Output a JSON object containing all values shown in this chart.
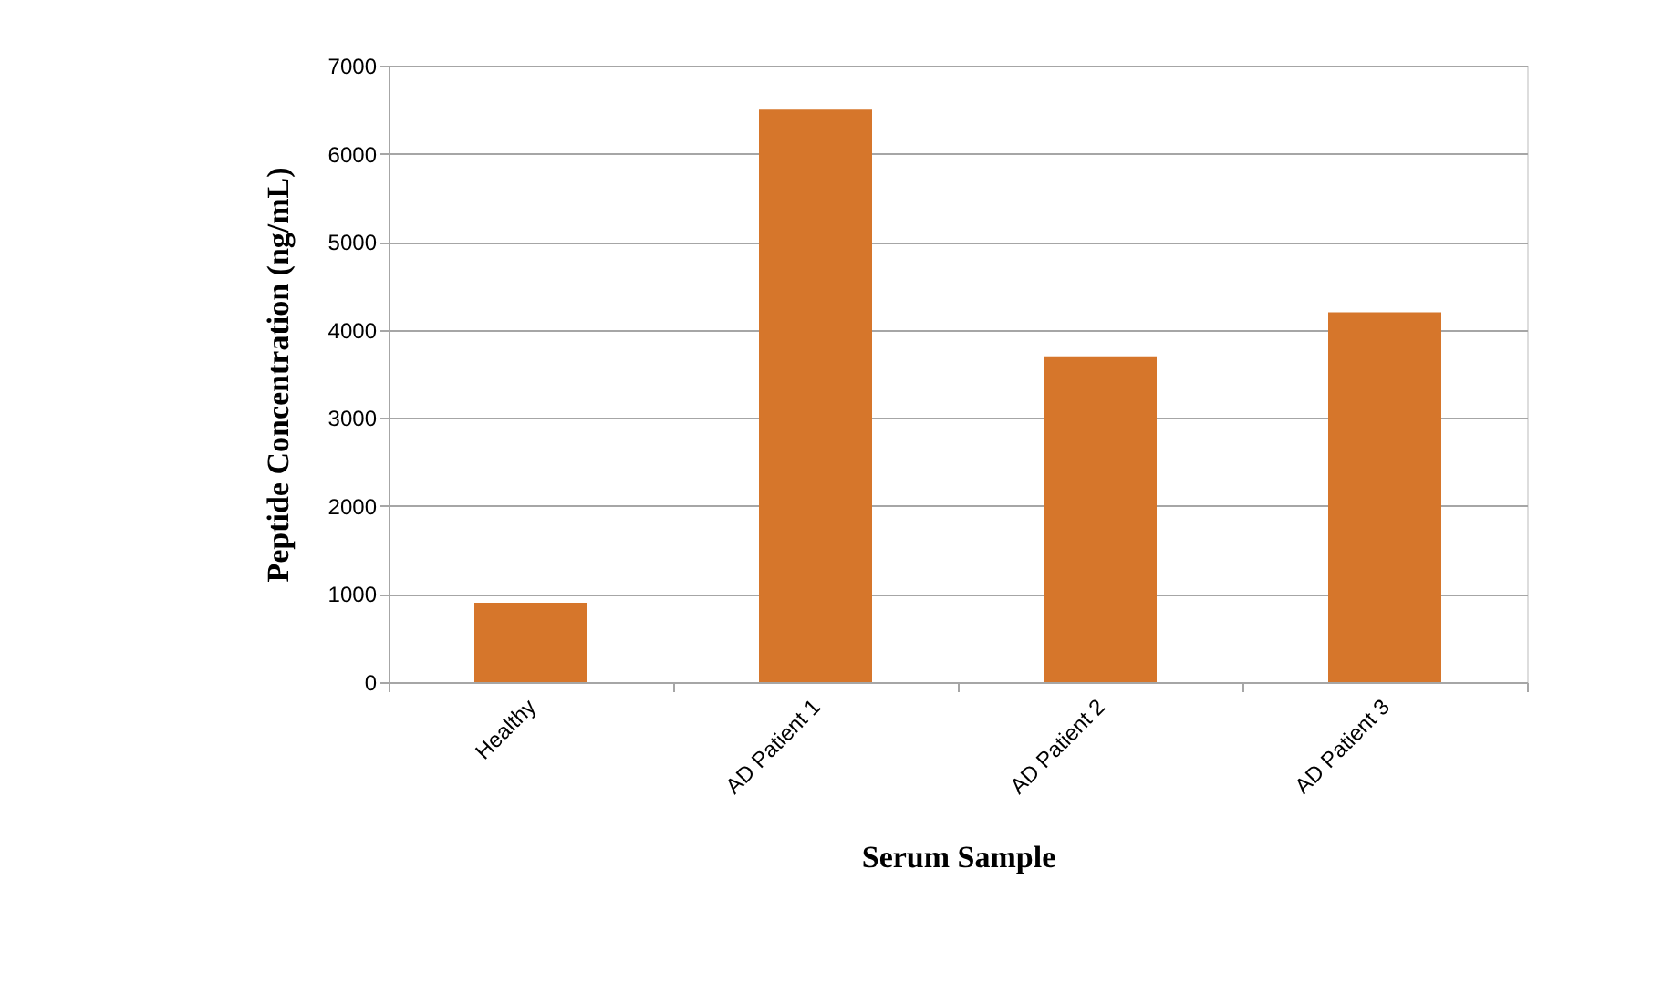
{
  "chart_data": {
    "type": "bar",
    "xlabel": "Serum Sample",
    "ylabel": "Peptide Concentration (ng/mL)",
    "categories": [
      "Healthy",
      "AD Patient 1",
      "AD Patient 2",
      "AD Patient 3"
    ],
    "values": [
      900,
      6500,
      3700,
      4200
    ],
    "color": "#d6762b",
    "ylim": [
      0,
      7000
    ],
    "yticks": [
      0,
      1000,
      2000,
      3000,
      4000,
      5000,
      6000,
      7000
    ],
    "grid": "y"
  }
}
